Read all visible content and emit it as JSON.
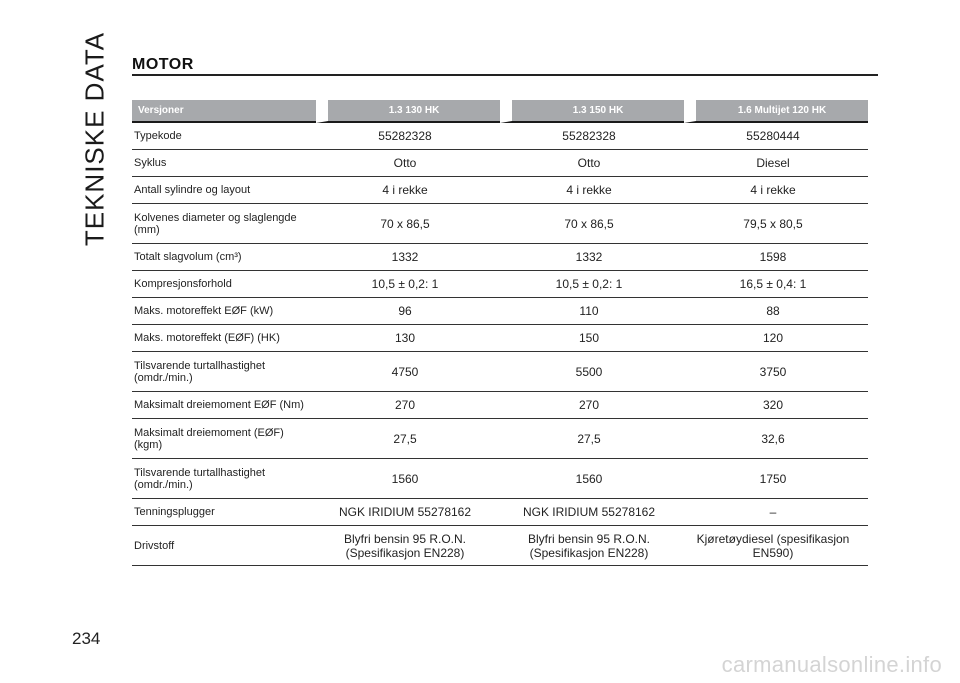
{
  "section_side_title": "TEKNISKE DATA",
  "section_title": "MOTOR",
  "table": {
    "headers": [
      "Versjoner",
      "1.3 130 HK",
      "1.3 150 HK",
      "1.6 Multijet 120 HK"
    ],
    "rows": [
      [
        "Typekode",
        "55282328",
        "55282328",
        "55280444"
      ],
      [
        "Syklus",
        "Otto",
        "Otto",
        "Diesel"
      ],
      [
        "Antall sylindre og layout",
        "4 i rekke",
        "4 i rekke",
        "4 i rekke"
      ],
      [
        "Kolvenes diameter og slaglengde (mm)",
        "70 x 86,5",
        "70 x 86,5",
        "79,5 x 80,5"
      ],
      [
        "Totalt slagvolum (cm³)",
        "1332",
        "1332",
        "1598"
      ],
      [
        "Kompresjonsforhold",
        "10,5 ± 0,2: 1",
        "10,5 ± 0,2: 1",
        "16,5 ± 0,4: 1"
      ],
      [
        "Maks. motoreffekt EØF (kW)",
        "96",
        "110",
        "88"
      ],
      [
        "Maks. motoreffekt (EØF) (HK)",
        "130",
        "150",
        "120"
      ],
      [
        "Tilsvarende turtallhastighet (omdr./min.)",
        "4750",
        "5500",
        "3750"
      ],
      [
        "Maksimalt dreiemoment EØF (Nm)",
        "270",
        "270",
        "320"
      ],
      [
        "Maksimalt dreiemoment (EØF) (kgm)",
        "27,5",
        "27,5",
        "32,6"
      ],
      [
        "Tilsvarende turtallhastighet (omdr./min.)",
        "1560",
        "1560",
        "1750"
      ],
      [
        "Tenningsplugger",
        "NGK IRIDIUM 55278162",
        "NGK IRIDIUM 55278162",
        "–"
      ],
      [
        "Drivstoff",
        "Blyfri bensin 95 R.O.N. (Spesifikasjon EN228)",
        "Blyfri bensin 95 R.O.N. (Spesifikasjon EN228)",
        "Kjøretøydiesel (spesifikasjon EN590)"
      ]
    ]
  },
  "page_number": "234",
  "watermark": "carmanualsonline.info"
}
